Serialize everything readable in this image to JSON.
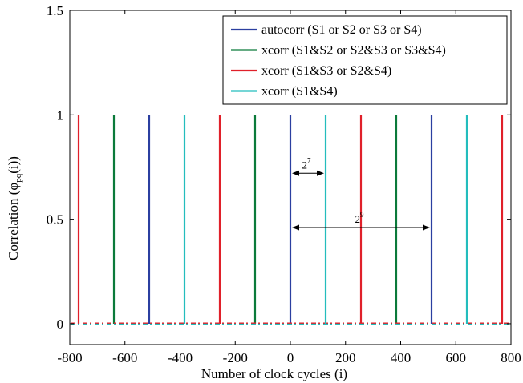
{
  "chart_data": {
    "type": "line",
    "xlabel": "Number of clock cycles (i)",
    "ylabel": "Correlation (φ",
    "ylabel_sub": "pq",
    "ylabel_tail": "(i))",
    "xlim": [
      -800,
      800
    ],
    "ylim": [
      -0.1,
      1.5
    ],
    "xticks": [
      -800,
      -600,
      -400,
      -200,
      0,
      200,
      400,
      600,
      800
    ],
    "xtick_labels": [
      "-800",
      "-600",
      "-400",
      "-200",
      "0",
      "200",
      "400",
      "600",
      "800"
    ],
    "yticks": [
      0,
      0.5,
      1,
      1.5
    ],
    "ytick_labels": [
      "0",
      "0.5",
      "1",
      "1.5"
    ],
    "grid": false,
    "legend_position": "top-right",
    "series": [
      {
        "name": "autocorr (S1 or S2 or S3 or S4)",
        "color": "#2b3fa0",
        "peaks_x": [
          -512,
          0,
          512
        ],
        "peak_value": 1,
        "baseline": 0
      },
      {
        "name": "xcorr (S1&S2 or S2&S3 or S3&S4)",
        "color": "#0b7a3a",
        "peaks_x": [
          -640,
          -128,
          384
        ],
        "peak_value": 1,
        "baseline": 0
      },
      {
        "name": "xcorr (S1&S3 or S2&S4)",
        "color": "#e0202a",
        "peaks_x": [
          -768,
          -256,
          256,
          768
        ],
        "peak_value": 1,
        "baseline": 0
      },
      {
        "name": "xcorr (S1&S4)",
        "color": "#23bdbd",
        "peaks_x": [
          -384,
          128,
          640
        ],
        "peak_value": 1,
        "baseline": 0
      }
    ],
    "annotations": [
      {
        "base": "2",
        "exponent": "7",
        "from_x": 0,
        "to_x": 128,
        "y": 0.72
      },
      {
        "base": "2",
        "exponent": "9",
        "from_x": 0,
        "to_x": 512,
        "y": 0.46
      }
    ]
  }
}
